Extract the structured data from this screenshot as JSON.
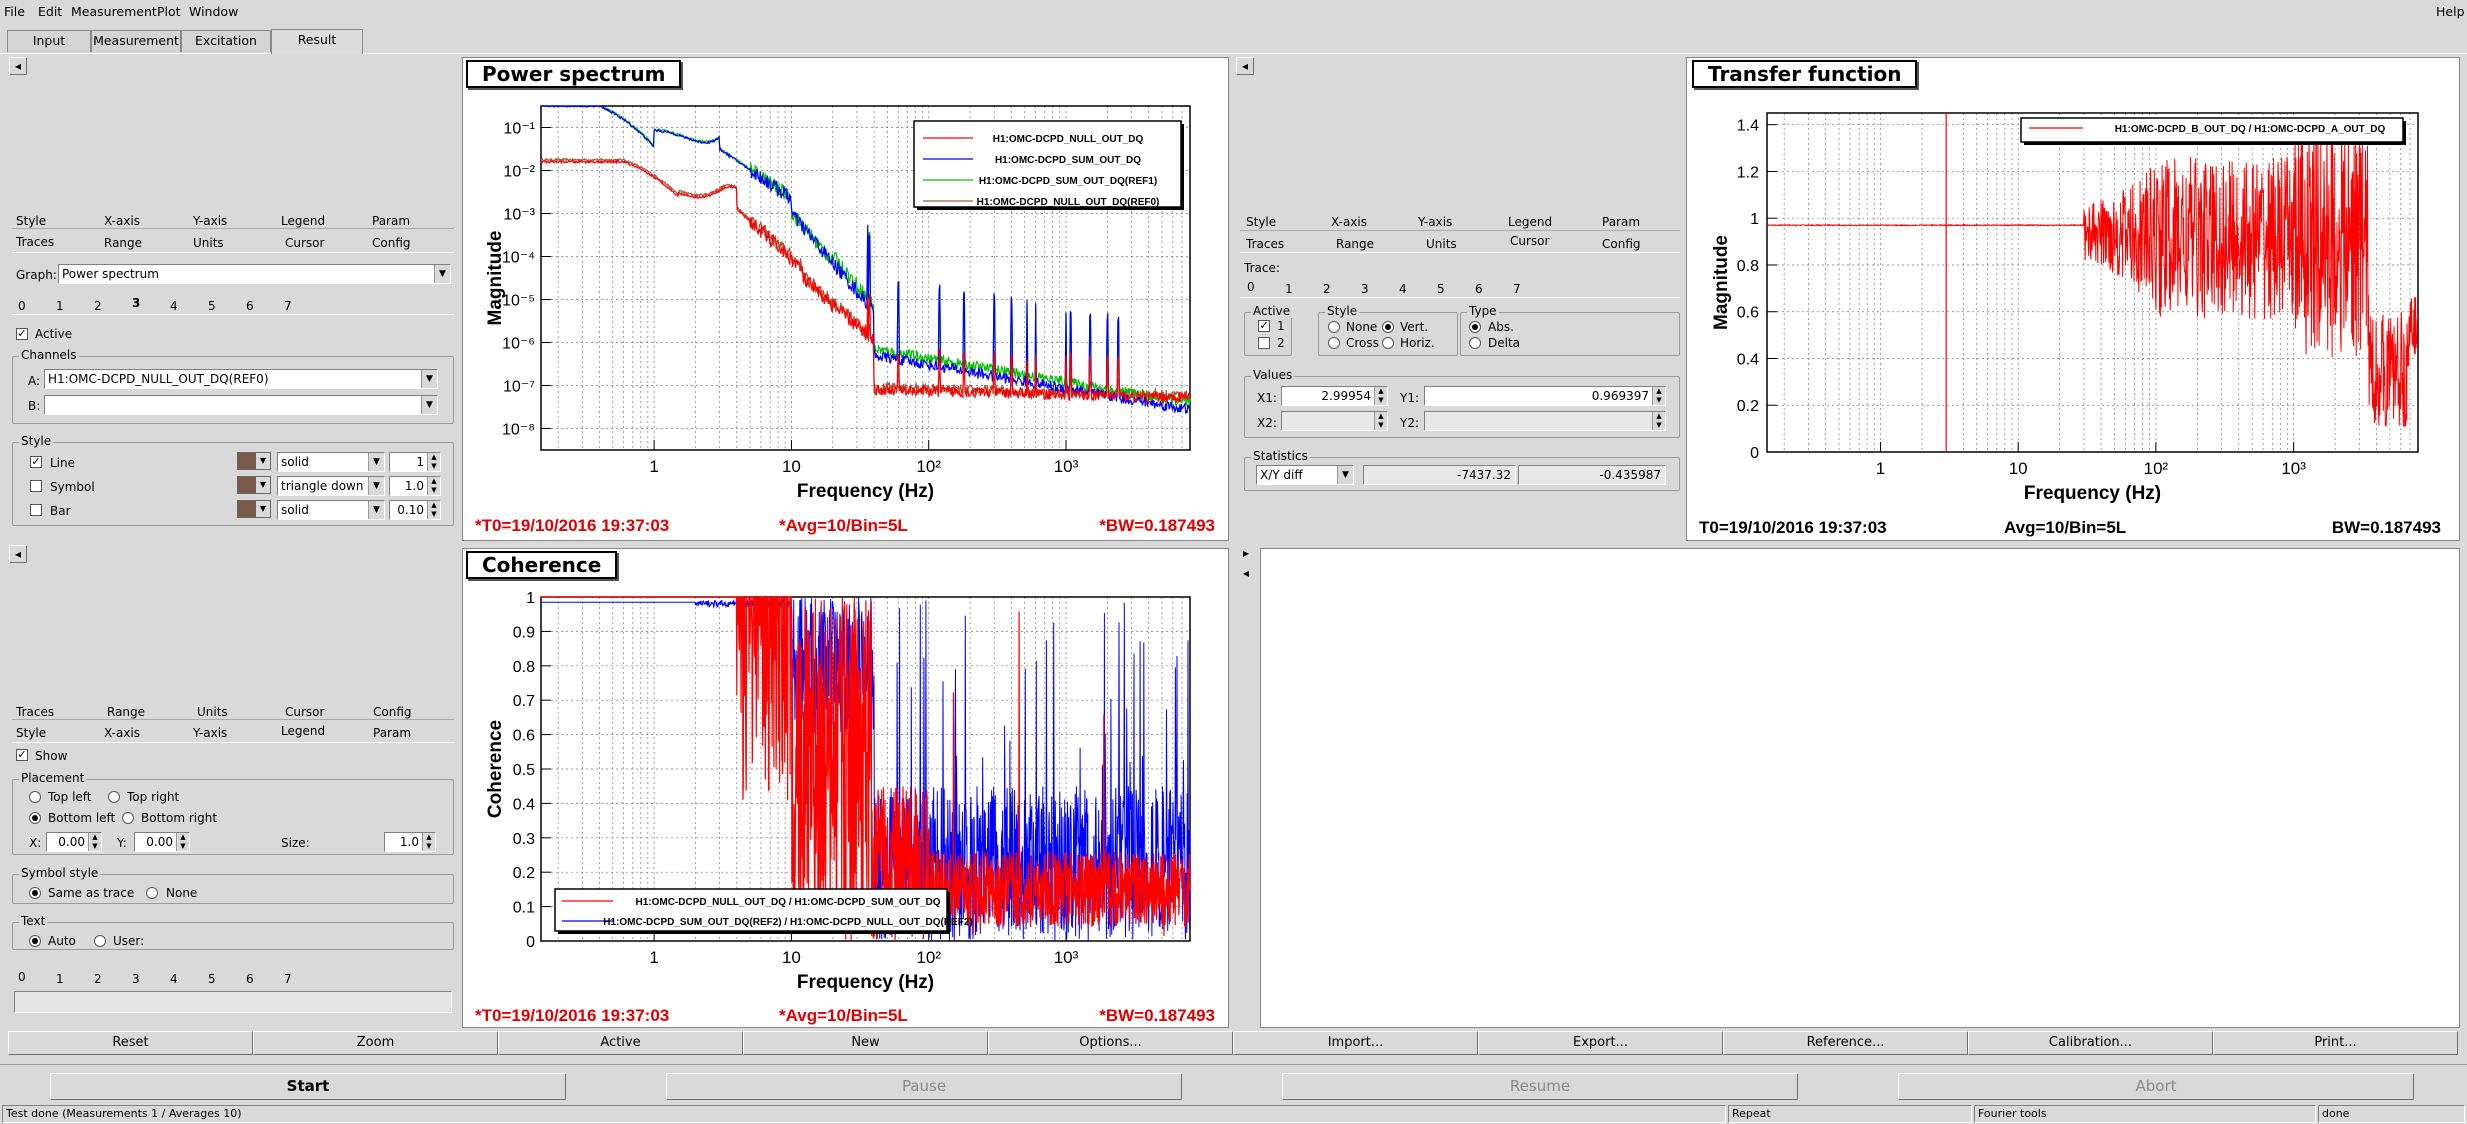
{
  "menu": [
    "File",
    "Edit",
    "Measurement",
    "Plot",
    "Window"
  ],
  "help": "Help",
  "tabs": [
    "Input",
    "Measurement",
    "Excitation",
    "Result"
  ],
  "left_top": {
    "nav_arrow": "◂",
    "tabs_row1": [
      "Style",
      "X-axis",
      "Y-axis",
      "Legend",
      "Param"
    ],
    "tabs_row2": [
      "Traces",
      "Range",
      "Units",
      "Cursor",
      "Config"
    ],
    "graph_label": "Graph:",
    "graph_value": "Power spectrum",
    "trace_tabs": [
      "0",
      "1",
      "2",
      "3",
      "4",
      "5",
      "6",
      "7"
    ],
    "active_label": "Active",
    "channels_title": "Channels",
    "a_label": "A:",
    "a_value": "H1:OMC-DCPD_NULL_OUT_DQ(REF0)",
    "b_label": "B:",
    "b_value": "",
    "style_title": "Style",
    "line_label": "Line",
    "symbol_label": "Symbol",
    "bar_label": "Bar",
    "line_style": "solid",
    "line_width": "1",
    "symbol_style": "triangle down",
    "symbol_size": "1.0",
    "bar_style": "solid",
    "bar_width": "0.10",
    "swatch_color": "#7a5a4a"
  },
  "left_bottom": {
    "tabs_row1": [
      "Traces",
      "Range",
      "Units",
      "Cursor",
      "Config"
    ],
    "tabs_row2": [
      "Style",
      "X-axis",
      "Y-axis",
      "Legend",
      "Param"
    ],
    "show_label": "Show",
    "placement_title": "Placement",
    "top_left": "Top left",
    "top_right": "Top right",
    "bottom_left": "Bottom left",
    "bottom_right": "Bottom right",
    "x_label": "X:",
    "x_value": "0.00",
    "y_label": "Y:",
    "y_value": "0.00",
    "size_label": "Size:",
    "size_value": "1.0",
    "symbol_style_title": "Symbol style",
    "same_as_trace": "Same as trace",
    "none": "None",
    "text_title": "Text",
    "auto": "Auto",
    "user": "User:",
    "trace_tabs": [
      "0",
      "1",
      "2",
      "3",
      "4",
      "5",
      "6",
      "7"
    ]
  },
  "cursor_panel": {
    "tabs_row1": [
      "Style",
      "X-axis",
      "Y-axis",
      "Legend",
      "Param"
    ],
    "tabs_row2": [
      "Traces",
      "Range",
      "Units",
      "Cursor",
      "Config"
    ],
    "trace_label": "Trace:",
    "trace_tabs": [
      "0",
      "1",
      "2",
      "3",
      "4",
      "5",
      "6",
      "7"
    ],
    "active_title": "Active",
    "active_1": "1",
    "active_2": "2",
    "style_title": "Style",
    "none": "None",
    "vert": "Vert.",
    "cross": "Cross",
    "horiz": "Horiz.",
    "type_title": "Type",
    "abs": "Abs.",
    "delta": "Delta",
    "values_title": "Values",
    "x1_label": "X1:",
    "x1_value": "2.99954",
    "y1_label": "Y1:",
    "y1_value": "0.969397",
    "x2_label": "X2:",
    "y2_label": "Y2:",
    "statistics_title": "Statistics",
    "stat_mode": "X/Y diff",
    "stat_v1": "-7437.32",
    "stat_v2": "-0.435987"
  },
  "power_spectrum": {
    "title": "Power spectrum",
    "xlabel": "Frequency (Hz)",
    "ylabel": "Magnitude",
    "yticks": [
      "10⁻¹",
      "10⁻²",
      "10⁻³",
      "10⁻⁴",
      "10⁻⁵",
      "10⁻⁶",
      "10⁻⁷",
      "10⁻⁸"
    ],
    "xticks": [
      "1",
      "10",
      "10²",
      "10³"
    ],
    "legend": [
      "H1:OMC-DCPD_NULL_OUT_DQ",
      "H1:OMC-DCPD_SUM_OUT_DQ",
      "H1:OMC-DCPD_SUM_OUT_DQ(REF1)",
      "H1:OMC-DCPD_NULL_OUT_DQ(REF0)"
    ],
    "footer_left": "*T0=19/10/2016 19:37:03",
    "footer_mid": "*Avg=10/Bin=5L",
    "footer_right": "*BW=0.187493"
  },
  "transfer": {
    "title": "Transfer function",
    "xlabel": "Frequency (Hz)",
    "ylabel": "Magnitude",
    "yticks": [
      "1.4",
      "1.2",
      "1",
      "0.8",
      "0.6",
      "0.4",
      "0.2",
      "0"
    ],
    "xticks": [
      "1",
      "10",
      "10²",
      "10³"
    ],
    "legend": [
      "H1:OMC-DCPD_B_OUT_DQ / H1:OMC-DCPD_A_OUT_DQ"
    ],
    "footer_left": "T0=19/10/2016 19:37:03",
    "footer_mid": "Avg=10/Bin=5L",
    "footer_right": "BW=0.187493"
  },
  "coherence": {
    "title": "Coherence",
    "xlabel": "Frequency (Hz)",
    "ylabel": "Coherence",
    "yticks": [
      "1",
      "0.9",
      "0.8",
      "0.7",
      "0.6",
      "0.5",
      "0.4",
      "0.3",
      "0.2",
      "0.1",
      "0"
    ],
    "xticks": [
      "1",
      "10",
      "10²",
      "10³"
    ],
    "legend": [
      "H1:OMC-DCPD_NULL_OUT_DQ / H1:OMC-DCPD_SUM_OUT_DQ",
      "H1:OMC-DCPD_SUM_OUT_DQ(REF2) / H1:OMC-DCPD_NULL_OUT_DQ(REF2)"
    ],
    "footer_left": "*T0=19/10/2016 19:37:03",
    "footer_mid": "*Avg=10/Bin=5L",
    "footer_right": "*BW=0.187493"
  },
  "bottom_buttons": [
    "Reset",
    "Zoom",
    "Active",
    "New",
    "Options...",
    "Import...",
    "Export...",
    "Reference...",
    "Calibration...",
    "Print..."
  ],
  "big_buttons": [
    "Start",
    "Pause",
    "Resume",
    "Abort"
  ],
  "status": [
    "Test done (Measurements 1 / Averages 10)",
    "Repeat",
    "Fourier tools",
    "done"
  ],
  "colors": {
    "red": "#ff0000",
    "blue": "#0000ff",
    "green": "#00c000",
    "brown": "#a05a3c"
  }
}
